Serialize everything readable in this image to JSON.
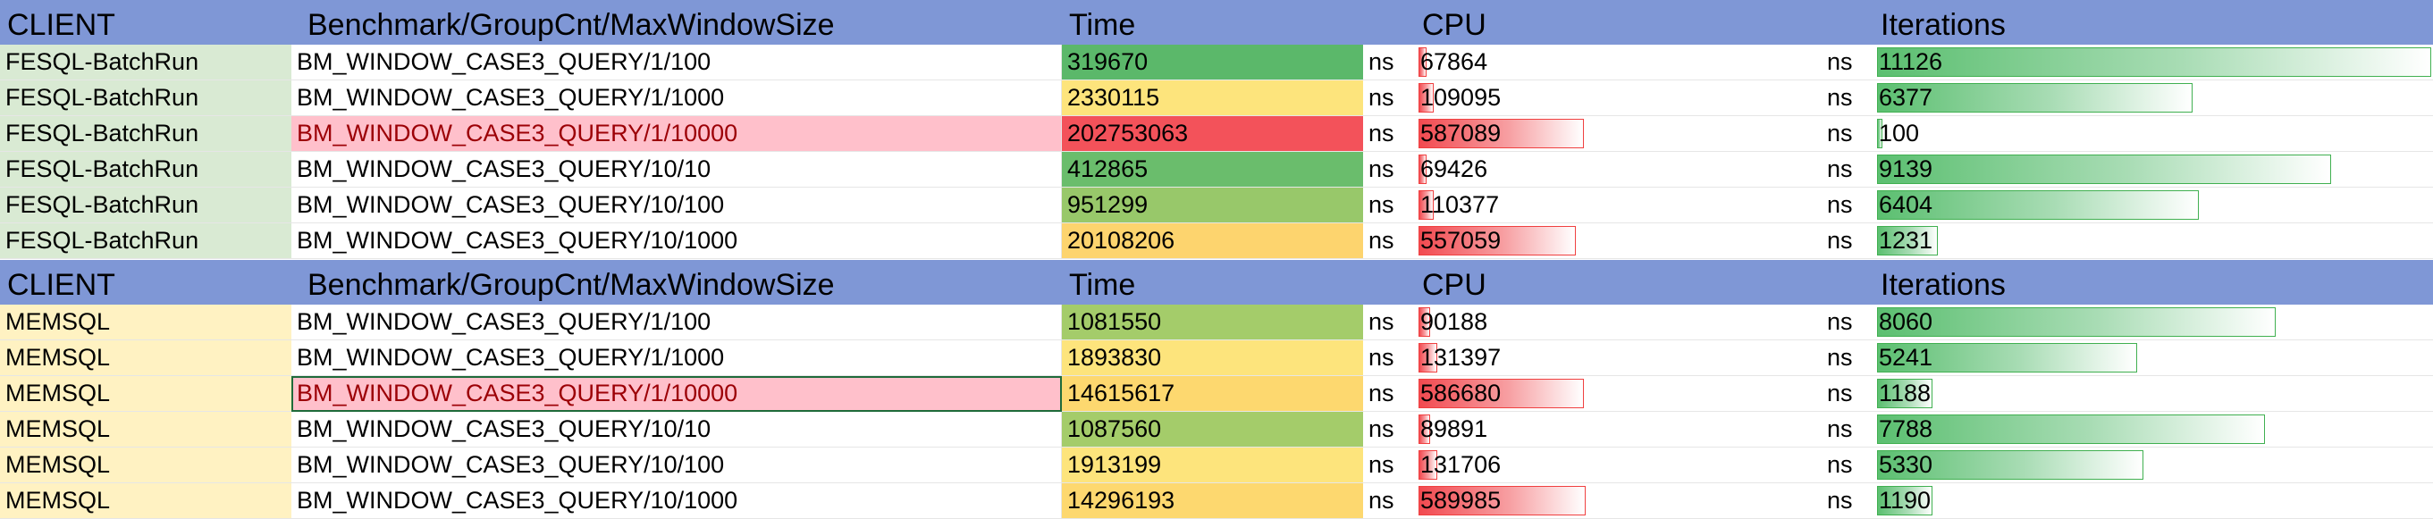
{
  "colors": {
    "header_bg": "#7f97d6",
    "fesql_client_bg": "#d9ead3",
    "memsql_client_bg": "#fff2c2",
    "highlight_row_bg": "#ffc0cb",
    "highlight_row_text": "#9c0006",
    "cpu_bar": "#f24a50",
    "iter_bar": "#5bbf70"
  },
  "sections": [
    {
      "header": {
        "client": "CLIENT",
        "benchmark": "Benchmark/GroupCnt/MaxWindowSize",
        "time": "Time",
        "cpu": "CPU",
        "iterations": "Iterations"
      },
      "client_bg": "#d9ead3",
      "rows": [
        {
          "client": "FESQL-BatchRun",
          "benchmark": "BM_WINDOW_CASE3_QUERY/1/100",
          "time": "319670",
          "time_unit": "ns",
          "time_color": "#5bb86a",
          "cpu": "67864",
          "cpu_unit": "ns",
          "cpu_bar": 0.05,
          "iterations": "11126",
          "iter_bar": 1.0,
          "highlight": false,
          "selected": false
        },
        {
          "client": "FESQL-BatchRun",
          "benchmark": "BM_WINDOW_CASE3_QUERY/1/1000",
          "time": "2330115",
          "time_unit": "ns",
          "time_color": "#fde47c",
          "cpu": "109095",
          "cpu_unit": "ns",
          "cpu_bar": 0.09,
          "iterations": "6377",
          "iter_bar": 0.57,
          "highlight": false,
          "selected": false
        },
        {
          "client": "FESQL-BatchRun",
          "benchmark": "BM_WINDOW_CASE3_QUERY/1/10000",
          "time": "202753063",
          "time_unit": "ns",
          "time_color": "#f3525a",
          "cpu": "587089",
          "cpu_unit": "ns",
          "cpu_bar": 0.99,
          "iterations": "100",
          "iter_bar": 0.009,
          "highlight": true,
          "selected": false
        },
        {
          "client": "FESQL-BatchRun",
          "benchmark": "BM_WINDOW_CASE3_QUERY/10/10",
          "time": "412865",
          "time_unit": "ns",
          "time_color": "#6abd6c",
          "cpu": "69426",
          "cpu_unit": "ns",
          "cpu_bar": 0.05,
          "iterations": "9139",
          "iter_bar": 0.82,
          "highlight": false,
          "selected": false
        },
        {
          "client": "FESQL-BatchRun",
          "benchmark": "BM_WINDOW_CASE3_QUERY/10/100",
          "time": "951299",
          "time_unit": "ns",
          "time_color": "#98c86a",
          "cpu": "110377",
          "cpu_unit": "ns",
          "cpu_bar": 0.09,
          "iterations": "6404",
          "iter_bar": 0.58,
          "highlight": false,
          "selected": false
        },
        {
          "client": "FESQL-BatchRun",
          "benchmark": "BM_WINDOW_CASE3_QUERY/10/1000",
          "time": "20108206",
          "time_unit": "ns",
          "time_color": "#fdd46e",
          "cpu": "557059",
          "cpu_unit": "ns",
          "cpu_bar": 0.94,
          "iterations": "1231",
          "iter_bar": 0.11,
          "highlight": false,
          "selected": false
        }
      ]
    },
    {
      "header": {
        "client": "CLIENT",
        "benchmark": "Benchmark/GroupCnt/MaxWindowSize",
        "time": "Time",
        "cpu": "CPU",
        "iterations": "Iterations"
      },
      "client_bg": "#fff2c2",
      "rows": [
        {
          "client": "MEMSQL",
          "benchmark": "BM_WINDOW_CASE3_QUERY/1/100",
          "time": "1081550",
          "time_unit": "ns",
          "time_color": "#a4cc6a",
          "cpu": "90188",
          "cpu_unit": "ns",
          "cpu_bar": 0.07,
          "iterations": "8060",
          "iter_bar": 0.72,
          "highlight": false,
          "selected": false
        },
        {
          "client": "MEMSQL",
          "benchmark": "BM_WINDOW_CASE3_QUERY/1/1000",
          "time": "1893830",
          "time_unit": "ns",
          "time_color": "#fde47c",
          "cpu": "131397",
          "cpu_unit": "ns",
          "cpu_bar": 0.11,
          "iterations": "5241",
          "iter_bar": 0.47,
          "highlight": false,
          "selected": false
        },
        {
          "client": "MEMSQL",
          "benchmark": "BM_WINDOW_CASE3_QUERY/1/10000",
          "time": "14615617",
          "time_unit": "ns",
          "time_color": "#fdd86f",
          "cpu": "586680",
          "cpu_unit": "ns",
          "cpu_bar": 0.99,
          "iterations": "1188",
          "iter_bar": 0.1,
          "highlight": true,
          "selected": true
        },
        {
          "client": "MEMSQL",
          "benchmark": "BM_WINDOW_CASE3_QUERY/10/10",
          "time": "1087560",
          "time_unit": "ns",
          "time_color": "#a4cc6a",
          "cpu": "89891",
          "cpu_unit": "ns",
          "cpu_bar": 0.07,
          "iterations": "7788",
          "iter_bar": 0.7,
          "highlight": false,
          "selected": false
        },
        {
          "client": "MEMSQL",
          "benchmark": "BM_WINDOW_CASE3_QUERY/10/100",
          "time": "1913199",
          "time_unit": "ns",
          "time_color": "#fde47c",
          "cpu": "131706",
          "cpu_unit": "ns",
          "cpu_bar": 0.11,
          "iterations": "5330",
          "iter_bar": 0.48,
          "highlight": false,
          "selected": false
        },
        {
          "client": "MEMSQL",
          "benchmark": "BM_WINDOW_CASE3_QUERY/10/1000",
          "time": "14296193",
          "time_unit": "ns",
          "time_color": "#fdd86f",
          "cpu": "589985",
          "cpu_unit": "ns",
          "cpu_bar": 1.0,
          "iterations": "1190",
          "iter_bar": 0.1,
          "highlight": false,
          "selected": false
        }
      ]
    }
  ]
}
